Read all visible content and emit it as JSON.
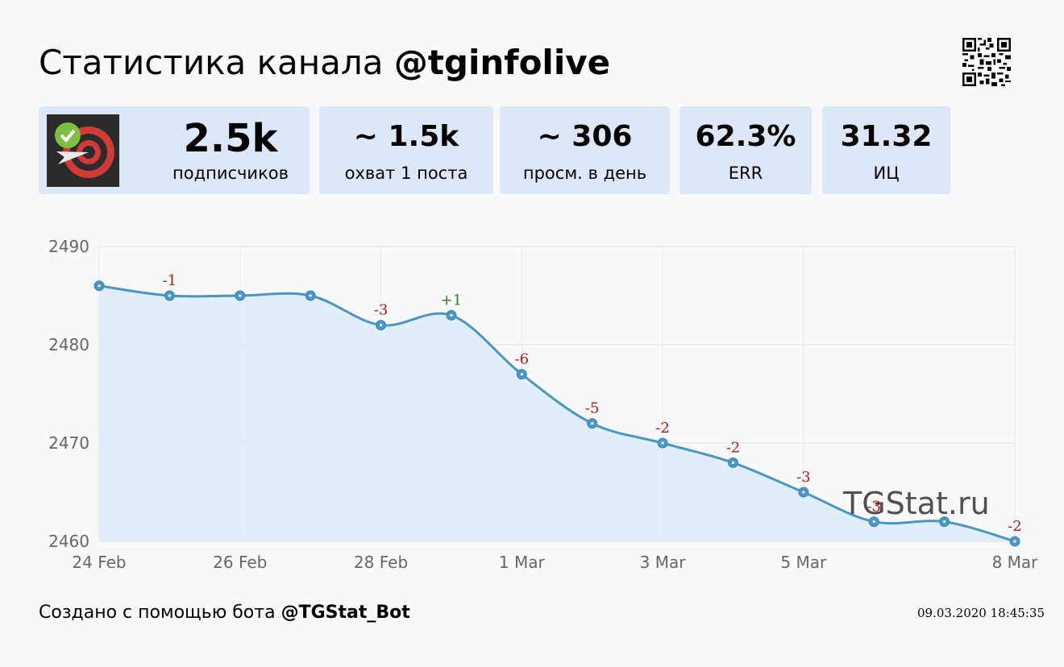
{
  "header": {
    "title_prefix": "Статистика канала",
    "channel": "@tginfolive"
  },
  "stats": [
    {
      "value": "2.5k",
      "label": "подписчиков"
    },
    {
      "value": "~ 1.5k",
      "label": "охват 1 поста"
    },
    {
      "value": "~ 306",
      "label": "просм. в день"
    },
    {
      "value": "62.3%",
      "label": "ERR"
    },
    {
      "value": "31.32",
      "label": "ИЦ"
    }
  ],
  "footer": {
    "created_prefix": "Создано с помощью бота",
    "bot": "@TGStat_Bot",
    "timestamp": "09.03.2020 18:45:35"
  },
  "watermark": "TGStat.ru",
  "colors": {
    "line": "#4a97c4",
    "fill": "#deebfa",
    "negative": "#c0151b",
    "positive": "#2a7a2a",
    "card": "#dce8f8"
  },
  "chart_data": {
    "type": "area",
    "x": [
      "24 Feb",
      "25 Feb",
      "26 Feb",
      "27 Feb",
      "28 Feb",
      "29 Feb",
      "1 Mar",
      "2 Mar",
      "3 Mar",
      "4 Mar",
      "5 Mar",
      "6 Mar",
      "7 Mar",
      "8 Mar"
    ],
    "values": [
      2486,
      2485,
      2485,
      2485,
      2482,
      2483,
      2477,
      2472,
      2470,
      2468,
      2465,
      2462,
      2462,
      2460
    ],
    "data_labels": [
      "",
      "-1",
      "",
      "",
      "-3",
      "+1",
      "-6",
      "-5",
      "-2",
      "-2",
      "-3",
      "-3",
      "",
      "-2"
    ],
    "x_ticks": [
      "24 Feb",
      "26 Feb",
      "28 Feb",
      "1 Mar",
      "3 Mar",
      "5 Mar",
      "8 Mar"
    ],
    "y_ticks": [
      2460,
      2470,
      2480,
      2490
    ],
    "ylim": [
      2460,
      2490
    ],
    "grid": true
  }
}
